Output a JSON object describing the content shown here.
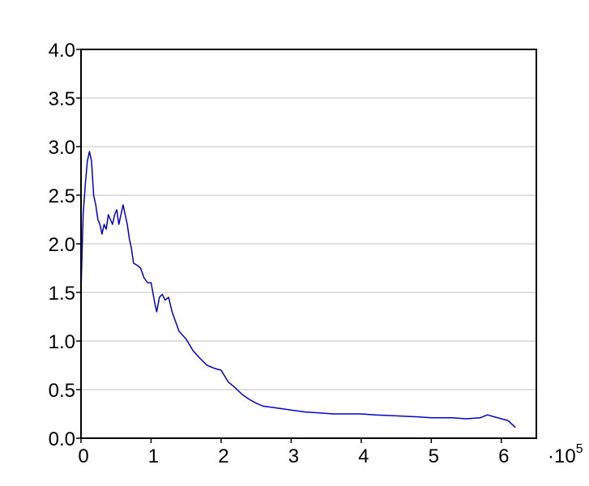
{
  "chart_data": {
    "type": "line",
    "title": "",
    "xlabel": "",
    "ylabel": "",
    "xlim": [
      0,
      6.5
    ],
    "ylim": [
      0,
      4.0
    ],
    "x_multiplier_label": "·10",
    "x_multiplier_exponent": "5",
    "x_ticks": [
      {
        "value": 0,
        "label": "0"
      },
      {
        "value": 1,
        "label": "1"
      },
      {
        "value": 2,
        "label": "2"
      },
      {
        "value": 3,
        "label": "3"
      },
      {
        "value": 4,
        "label": "4"
      },
      {
        "value": 5,
        "label": "5"
      },
      {
        "value": 6,
        "label": "6"
      }
    ],
    "y_ticks": [
      {
        "value": 0.0,
        "label": "0.0"
      },
      {
        "value": 0.5,
        "label": "0.5"
      },
      {
        "value": 1.0,
        "label": "1.0"
      },
      {
        "value": 1.5,
        "label": "1.5"
      },
      {
        "value": 2.0,
        "label": "2.0"
      },
      {
        "value": 2.5,
        "label": "2.5"
      },
      {
        "value": 3.0,
        "label": "3.0"
      },
      {
        "value": 3.5,
        "label": "3.5"
      },
      {
        "value": 4.0,
        "label": "4.0"
      }
    ],
    "grid": "horizontal",
    "grid_color": "#c0c0c0",
    "frame_color": "#000000",
    "series": [
      {
        "color": "#0000d0",
        "x": [
          0,
          0.03,
          0.06,
          0.09,
          0.12,
          0.15,
          0.18,
          0.21,
          0.24,
          0.27,
          0.3,
          0.33,
          0.36,
          0.39,
          0.42,
          0.45,
          0.48,
          0.51,
          0.54,
          0.57,
          0.6,
          0.63,
          0.66,
          0.69,
          0.72,
          0.75,
          0.8,
          0.85,
          0.9,
          0.95,
          1.0,
          1.05,
          1.08,
          1.12,
          1.16,
          1.2,
          1.25,
          1.3,
          1.35,
          1.4,
          1.5,
          1.6,
          1.7,
          1.8,
          1.9,
          2.0,
          2.1,
          2.2,
          2.3,
          2.4,
          2.5,
          2.6,
          2.8,
          3.0,
          3.2,
          3.4,
          3.6,
          3.8,
          4.0,
          4.2,
          4.5,
          4.8,
          5.0,
          5.3,
          5.5,
          5.7,
          5.8,
          5.9,
          6.0,
          6.1,
          6.2
        ],
        "y": [
          1.5,
          2.3,
          2.6,
          2.85,
          2.95,
          2.85,
          2.5,
          2.4,
          2.25,
          2.2,
          2.1,
          2.2,
          2.15,
          2.3,
          2.25,
          2.2,
          2.3,
          2.35,
          2.2,
          2.3,
          2.4,
          2.3,
          2.2,
          2.05,
          1.95,
          1.8,
          1.78,
          1.75,
          1.65,
          1.6,
          1.6,
          1.4,
          1.3,
          1.45,
          1.48,
          1.42,
          1.45,
          1.3,
          1.2,
          1.1,
          1.02,
          0.9,
          0.82,
          0.75,
          0.72,
          0.7,
          0.58,
          0.52,
          0.45,
          0.4,
          0.36,
          0.33,
          0.31,
          0.29,
          0.27,
          0.26,
          0.25,
          0.25,
          0.25,
          0.24,
          0.23,
          0.22,
          0.21,
          0.21,
          0.2,
          0.21,
          0.24,
          0.22,
          0.2,
          0.18,
          0.11
        ]
      }
    ]
  }
}
